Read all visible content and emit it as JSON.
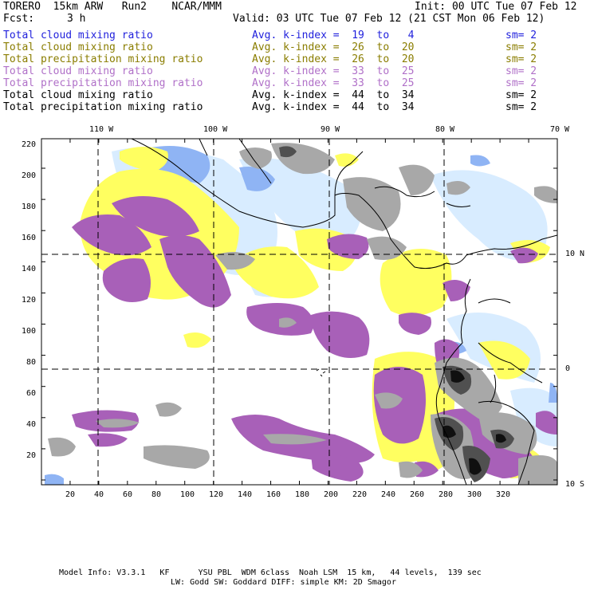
{
  "header": {
    "model": "TORERO  15km ARW   Run2    NCAR/MMM",
    "init": "Init: 00 UTC Tue 07 Feb 12",
    "fcst_label": "Fcst:",
    "fcst_value": "3 h",
    "valid": "Valid: 03 UTC Tue 07 Feb 12 (21 CST Mon 06 Feb 12)"
  },
  "legend": [
    {
      "field": "Total cloud mixing ratio",
      "index": "Avg. k-index =  19  to   4",
      "sm": "sm= 2",
      "color": "#1f1fdc"
    },
    {
      "field": "Total cloud mixing ratio",
      "index": "Avg. k-index =  26  to  20",
      "sm": "sm= 2",
      "color": "#8a7d00"
    },
    {
      "field": "Total precipitation mixing ratio",
      "index": "Avg. k-index =  26  to  20",
      "sm": "sm= 2",
      "color": "#8a7d00"
    },
    {
      "field": "Total cloud mixing ratio",
      "index": "Avg. k-index =  33  to  25",
      "sm": "sm= 2",
      "color": "#b070c8"
    },
    {
      "field": "Total precipitation mixing ratio",
      "index": "Avg. k-index =  33  to  25",
      "sm": "sm= 2",
      "color": "#b070c8"
    },
    {
      "field": "Total cloud mixing ratio",
      "index": "Avg. k-index =  44  to  34",
      "sm": "sm= 2",
      "color": "#000000"
    },
    {
      "field": "Total precipitation mixing ratio",
      "index": "Avg. k-index =  44  to  34",
      "sm": "sm= 2",
      "color": "#000000"
    }
  ],
  "map": {
    "top_longitudes": [
      "110 W",
      "100 W",
      "90 W",
      "80 W",
      "70 W"
    ],
    "right_latitudes": [
      "10 N",
      "0",
      "10 S"
    ],
    "x_ticks": [
      "20",
      "40",
      "60",
      "80",
      "100",
      "120",
      "140",
      "160",
      "180",
      "200",
      "220",
      "240",
      "260",
      "280",
      "300",
      "320"
    ],
    "y_ticks": [
      "220",
      "200",
      "180",
      "160",
      "140",
      "120",
      "100",
      "80",
      "60",
      "40",
      "20"
    ]
  },
  "footer": {
    "line1": "Model Info: V3.3.1   KF      YSU PBL  WDM 6class  Noah LSM  15 km,   44 levels,  139 sec",
    "line2": "LW: Godd SW: Goddard DIFF: simple KM: 2D Smagor"
  },
  "colors": {
    "yellow": "#ffff60",
    "light_blue": "#d8ecff",
    "blue": "#8fb4f4",
    "purple": "#a860b8",
    "gray": "#a8a8a8",
    "dark_gray": "#505050",
    "black_fill": "#101010"
  }
}
